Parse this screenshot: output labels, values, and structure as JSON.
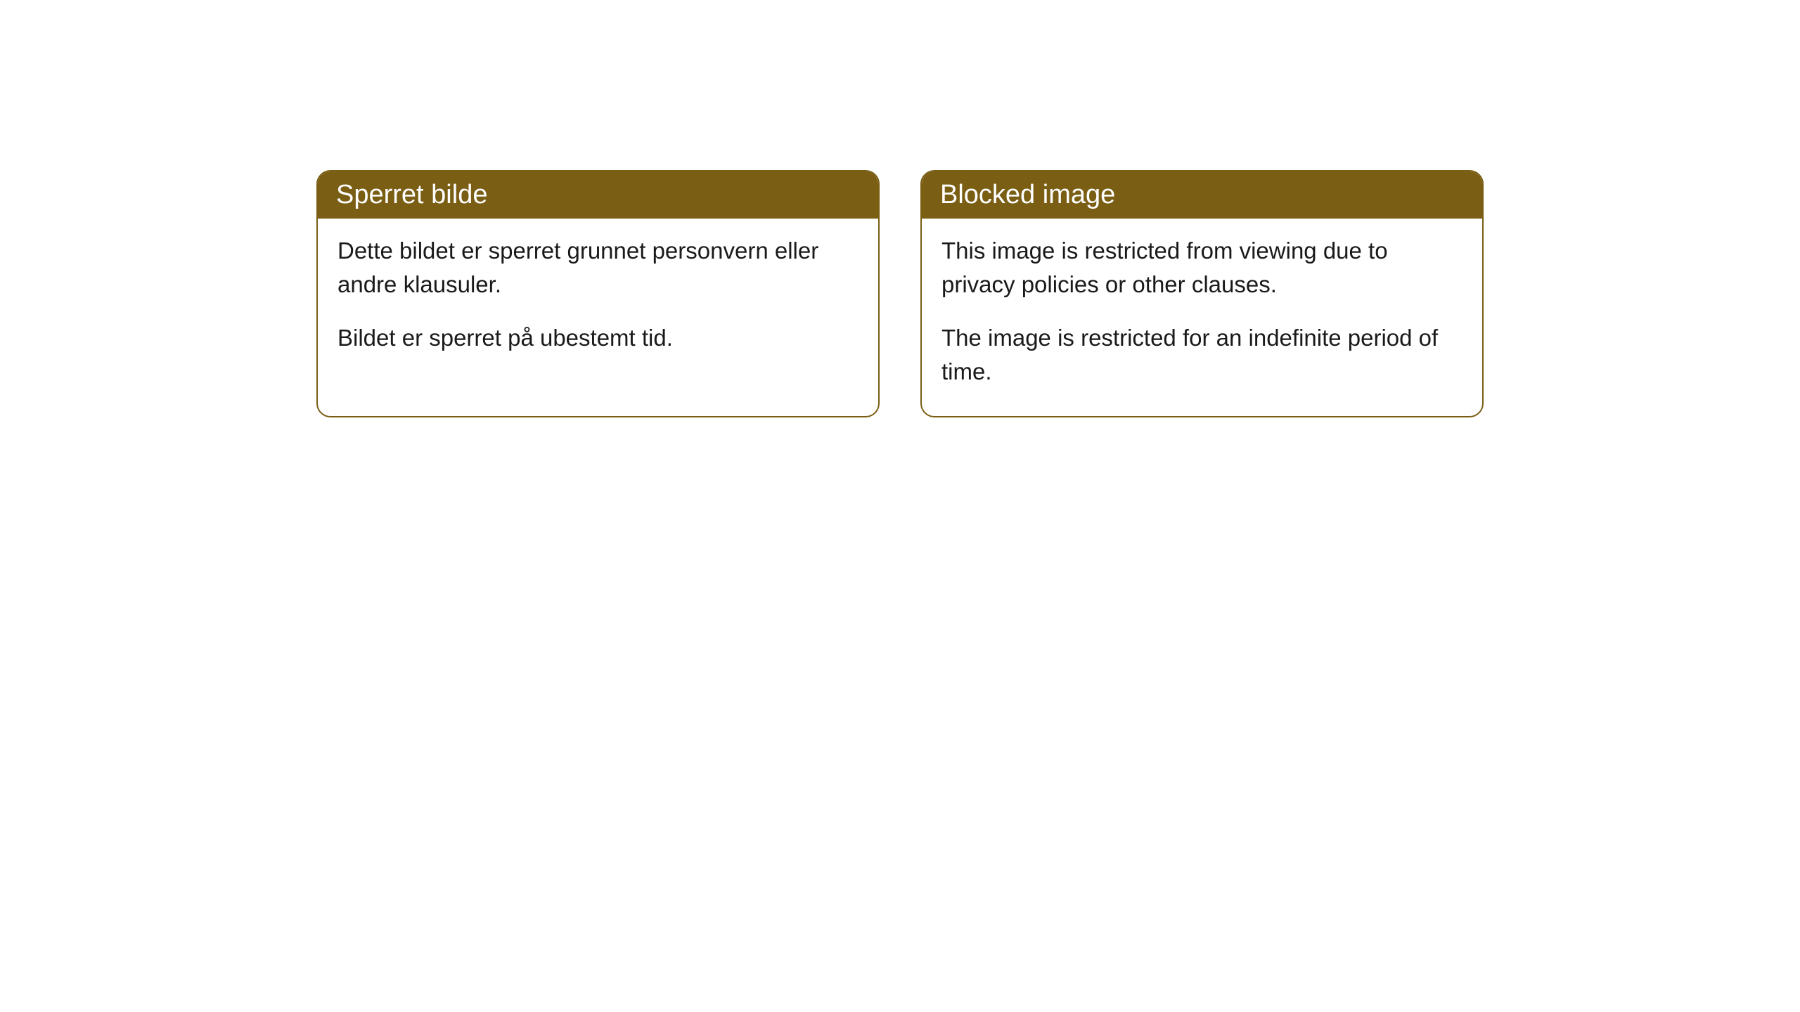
{
  "cards": [
    {
      "title": "Sperret bilde",
      "paragraph1": "Dette bildet er sperret grunnet personvern eller andre klausuler.",
      "paragraph2": "Bildet er sperret på ubestemt tid."
    },
    {
      "title": "Blocked image",
      "paragraph1": "This image is restricted from viewing due to privacy policies or other clauses.",
      "paragraph2": "The image is restricted for an indefinite period of time."
    }
  ],
  "style": {
    "header_bg_color": "#7a5e14",
    "header_text_color": "#ffffff",
    "border_color": "#7a5e14",
    "body_bg_color": "#ffffff",
    "body_text_color": "#1a1a1a",
    "border_radius": 20,
    "title_fontsize": 38,
    "body_fontsize": 33
  }
}
